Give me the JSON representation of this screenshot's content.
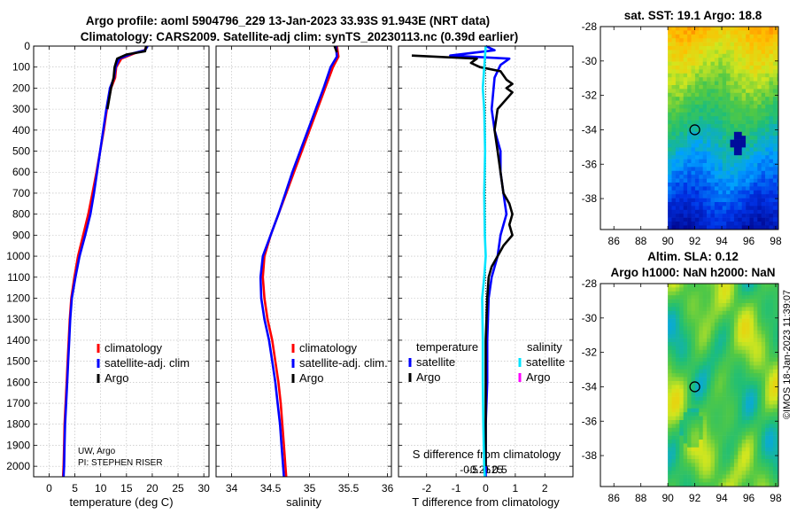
{
  "header": {
    "line1": "Argo profile: aoml 5904796_229 13-Jan-2023 33.93S 91.943E (NRT data)",
    "line2": "Climatology: CARS2009. Satellite-adj clim: synTS_20230113.nc (0.39d earlier)"
  },
  "credit": {
    "org": "UW, Argo",
    "pi": "PI: STEPHEN RISER"
  },
  "watermark": "©IMOS 18-Jan-2023 11:39:07",
  "colors": {
    "climatology": "#ff0000",
    "satellite": "#0000ff",
    "argo": "#000000",
    "sat_t": "#00e5ff",
    "argo_s": "#ff00ff"
  },
  "chart_data": [
    {
      "id": "temperature",
      "type": "line",
      "xlabel": "temperature (deg C)",
      "ylabel": "",
      "xlim": [
        -3,
        31
      ],
      "ylim": [
        2050,
        0
      ],
      "xticks": [
        0,
        5,
        10,
        15,
        20,
        25,
        30
      ],
      "xtick_labels": [
        "0",
        "5",
        "10",
        "15",
        "20",
        "25",
        "30"
      ],
      "yticks": [
        0,
        100,
        200,
        300,
        400,
        500,
        600,
        700,
        800,
        900,
        1000,
        1100,
        1200,
        1300,
        1400,
        1500,
        1600,
        1700,
        1800,
        1900,
        2000
      ],
      "legend": [
        "climatology",
        "satellite-adj. clim",
        "Argo"
      ],
      "series": [
        {
          "name": "climatology",
          "color": "#ff0000",
          "points": [
            [
              19.0,
              0
            ],
            [
              18.5,
              20
            ],
            [
              16.5,
              35
            ],
            [
              14.0,
              60
            ],
            [
              13.0,
              100
            ],
            [
              12.8,
              150
            ],
            [
              12.0,
              200
            ],
            [
              11.2,
              300
            ],
            [
              10.6,
              400
            ],
            [
              9.9,
              500
            ],
            [
              9.2,
              600
            ],
            [
              8.4,
              700
            ],
            [
              7.6,
              800
            ],
            [
              6.6,
              900
            ],
            [
              5.6,
              1000
            ],
            [
              4.9,
              1100
            ],
            [
              4.3,
              1200
            ],
            [
              4.0,
              1300
            ],
            [
              3.8,
              1400
            ],
            [
              3.6,
              1500
            ],
            [
              3.4,
              1600
            ],
            [
              3.2,
              1700
            ],
            [
              3.0,
              1800
            ],
            [
              2.9,
              1900
            ],
            [
              2.8,
              2000
            ],
            [
              2.7,
              2050
            ]
          ]
        },
        {
          "name": "satellite-adj. clim",
          "color": "#0000ff",
          "points": [
            [
              19.1,
              0
            ],
            [
              18.6,
              20
            ],
            [
              16.2,
              35
            ],
            [
              13.6,
              60
            ],
            [
              12.9,
              100
            ],
            [
              12.6,
              150
            ],
            [
              11.8,
              200
            ],
            [
              11.1,
              300
            ],
            [
              10.5,
              400
            ],
            [
              9.9,
              500
            ],
            [
              9.3,
              600
            ],
            [
              8.7,
              700
            ],
            [
              8.0,
              800
            ],
            [
              7.0,
              900
            ],
            [
              5.9,
              1000
            ],
            [
              5.1,
              1100
            ],
            [
              4.4,
              1200
            ],
            [
              4.1,
              1300
            ],
            [
              3.9,
              1400
            ],
            [
              3.7,
              1500
            ],
            [
              3.5,
              1600
            ],
            [
              3.3,
              1700
            ],
            [
              3.1,
              1800
            ],
            [
              3.0,
              1900
            ],
            [
              2.9,
              2000
            ],
            [
              2.8,
              2050
            ]
          ]
        },
        {
          "name": "Argo",
          "color": "#000000",
          "points": [
            [
              18.8,
              0
            ],
            [
              18.6,
              25
            ],
            [
              15.0,
              40
            ],
            [
              13.2,
              60
            ],
            [
              12.7,
              100
            ],
            [
              12.5,
              150
            ],
            [
              12.0,
              200
            ],
            [
              11.3,
              300
            ]
          ]
        }
      ]
    },
    {
      "id": "salinity",
      "type": "line",
      "xlabel": "salinity",
      "ylabel": "",
      "xlim": [
        33.8,
        36.05
      ],
      "ylim": [
        2050,
        0
      ],
      "xticks": [
        34,
        34.5,
        35,
        35.5,
        36
      ],
      "xtick_labels": [
        "34",
        "34.5",
        "35",
        "35.5",
        "36"
      ],
      "legend": [
        "climatology",
        "satellite-adj. clim.",
        "Argo"
      ],
      "series": [
        {
          "name": "climatology",
          "color": "#ff0000",
          "points": [
            [
              35.35,
              0
            ],
            [
              35.37,
              50
            ],
            [
              35.3,
              100
            ],
            [
              35.2,
              200
            ],
            [
              35.1,
              300
            ],
            [
              35.0,
              400
            ],
            [
              34.9,
              500
            ],
            [
              34.8,
              600
            ],
            [
              34.7,
              700
            ],
            [
              34.6,
              800
            ],
            [
              34.5,
              900
            ],
            [
              34.42,
              1000
            ],
            [
              34.4,
              1100
            ],
            [
              34.42,
              1200
            ],
            [
              34.46,
              1300
            ],
            [
              34.52,
              1400
            ],
            [
              34.56,
              1500
            ],
            [
              34.6,
              1600
            ],
            [
              34.63,
              1700
            ],
            [
              34.65,
              1800
            ],
            [
              34.67,
              1900
            ],
            [
              34.69,
              2000
            ],
            [
              34.7,
              2050
            ]
          ]
        },
        {
          "name": "satellite-adj. clim.",
          "color": "#0000ff",
          "points": [
            [
              35.34,
              0
            ],
            [
              35.35,
              50
            ],
            [
              35.27,
              100
            ],
            [
              35.18,
              200
            ],
            [
              35.08,
              300
            ],
            [
              34.98,
              400
            ],
            [
              34.88,
              500
            ],
            [
              34.78,
              600
            ],
            [
              34.69,
              700
            ],
            [
              34.6,
              800
            ],
            [
              34.5,
              900
            ],
            [
              34.4,
              1000
            ],
            [
              34.37,
              1100
            ],
            [
              34.38,
              1200
            ],
            [
              34.42,
              1300
            ],
            [
              34.48,
              1400
            ],
            [
              34.52,
              1500
            ],
            [
              34.56,
              1600
            ],
            [
              34.59,
              1700
            ],
            [
              34.62,
              1800
            ],
            [
              34.64,
              1900
            ],
            [
              34.66,
              2000
            ],
            [
              34.67,
              2050
            ]
          ]
        },
        {
          "name": "Argo",
          "color": "#000000",
          "points": [
            [
              35.32,
              0
            ],
            [
              35.35,
              30
            ]
          ]
        }
      ]
    },
    {
      "id": "difference",
      "type": "line",
      "xlabel": "T difference from climatology",
      "xlabel_top": "S difference from climatology",
      "xlim": [
        -2.95,
        2.95
      ],
      "ylim": [
        2050,
        0
      ],
      "xticks": [
        -2,
        -1,
        0,
        1,
        2
      ],
      "xtick_labels": [
        "-2",
        "-1",
        "0",
        "1",
        "2"
      ],
      "sticks": [
        -0.5,
        -0.25,
        0,
        0.25,
        0.5
      ],
      "stick_labels": [
        "-0.5",
        "-0.25",
        "0",
        "0.25",
        "0.5"
      ],
      "legend_t": {
        "title": "temperature",
        "items": [
          "satellite",
          "Argo"
        ]
      },
      "legend_s": {
        "title": "salinity",
        "items": [
          "satellite",
          "Argo"
        ]
      },
      "series": [
        {
          "name": "T satellite",
          "color": "#0000ff",
          "points": [
            [
              0,
              0
            ],
            [
              0.3,
              20
            ],
            [
              -1.2,
              45
            ],
            [
              0.8,
              60
            ],
            [
              0.5,
              90
            ],
            [
              0.3,
              150
            ],
            [
              0.2,
              300
            ],
            [
              0.3,
              400
            ],
            [
              0.5,
              500
            ],
            [
              0.5,
              600
            ],
            [
              0.6,
              700
            ],
            [
              0.7,
              800
            ],
            [
              0.5,
              900
            ],
            [
              0.4,
              1000
            ],
            [
              0.2,
              1100
            ],
            [
              0.1,
              1200
            ],
            [
              0.05,
              1400
            ],
            [
              0.05,
              1600
            ],
            [
              0.0,
              1800
            ],
            [
              0.0,
              2000
            ],
            [
              0.0,
              2050
            ]
          ]
        },
        {
          "name": "T Argo",
          "color": "#000000",
          "points": [
            [
              -2.5,
              45
            ],
            [
              -0.3,
              60
            ],
            [
              -0.5,
              80
            ],
            [
              -0.2,
              100
            ],
            [
              0.5,
              120
            ],
            [
              0.7,
              160
            ],
            [
              0.9,
              180
            ],
            [
              0.7,
              200
            ],
            [
              0.9,
              220
            ],
            [
              0.4,
              300
            ],
            [
              0.3,
              400
            ],
            [
              0.4,
              500
            ],
            [
              0.6,
              700
            ],
            [
              0.8,
              750
            ],
            [
              0.9,
              800
            ],
            [
              0.8,
              850
            ],
            [
              0.9,
              900
            ],
            [
              0.6,
              950
            ],
            [
              0.4,
              1000
            ],
            [
              0.2,
              1050
            ],
            [
              0.1,
              1100
            ],
            [
              0.05,
              1200
            ],
            [
              0.0,
              1400
            ],
            [
              0.0,
              1600
            ],
            [
              0.0,
              1800
            ],
            [
              0.0,
              2000
            ]
          ]
        },
        {
          "name": "S satellite",
          "color": "#00e5ff",
          "points": [
            [
              0.0,
              0
            ],
            [
              -0.1,
              200
            ],
            [
              -0.05,
              300
            ],
            [
              -0.02,
              500
            ],
            [
              -0.05,
              700
            ],
            [
              -0.03,
              900
            ],
            [
              0.0,
              1000
            ],
            [
              -0.05,
              1100
            ],
            [
              -0.12,
              1200
            ],
            [
              -0.1,
              1400
            ],
            [
              -0.1,
              1600
            ],
            [
              -0.08,
              1800
            ],
            [
              -0.05,
              2000
            ],
            [
              -0.03,
              2050
            ]
          ]
        },
        {
          "name": "S Argo",
          "color": "#ff00ff",
          "points": []
        }
      ]
    },
    {
      "id": "sst_map",
      "type": "heatmap",
      "title": "sat. SST: 19.1 Argo: 18.8",
      "xlim": [
        85,
        98.2
      ],
      "ylim": [
        -39.8,
        -28
      ],
      "xticks": [
        86,
        88,
        90,
        92,
        94,
        96,
        98
      ],
      "xtick_labels": [
        "86",
        "88",
        "90",
        "92",
        "94",
        "96",
        "98"
      ],
      "yticks": [
        -28,
        -30,
        -32,
        -34,
        -36,
        -38
      ],
      "ytick_labels": [
        "-28",
        "-30",
        "-32",
        "-34",
        "-36",
        "-38"
      ],
      "data_lon_range": [
        90,
        98.2
      ],
      "marker": [
        92,
        -34
      ]
    },
    {
      "id": "sla_map",
      "type": "heatmap",
      "title": "Altim. SLA: 0.12",
      "subtitle": "Argo h1000: NaN h2000: NaN",
      "xlim": [
        85,
        98.2
      ],
      "ylim": [
        -39.8,
        -28
      ],
      "xticks": [
        86,
        88,
        90,
        92,
        94,
        96,
        98
      ],
      "xtick_labels": [
        "86",
        "88",
        "90",
        "92",
        "94",
        "96",
        "98"
      ],
      "yticks": [
        -28,
        -30,
        -32,
        -34,
        -36,
        -38
      ],
      "ytick_labels": [
        "-28",
        "-30",
        "-32",
        "-34",
        "-36",
        "-38"
      ],
      "data_lon_range": [
        90,
        98.2
      ],
      "marker": [
        92,
        -34
      ]
    }
  ]
}
